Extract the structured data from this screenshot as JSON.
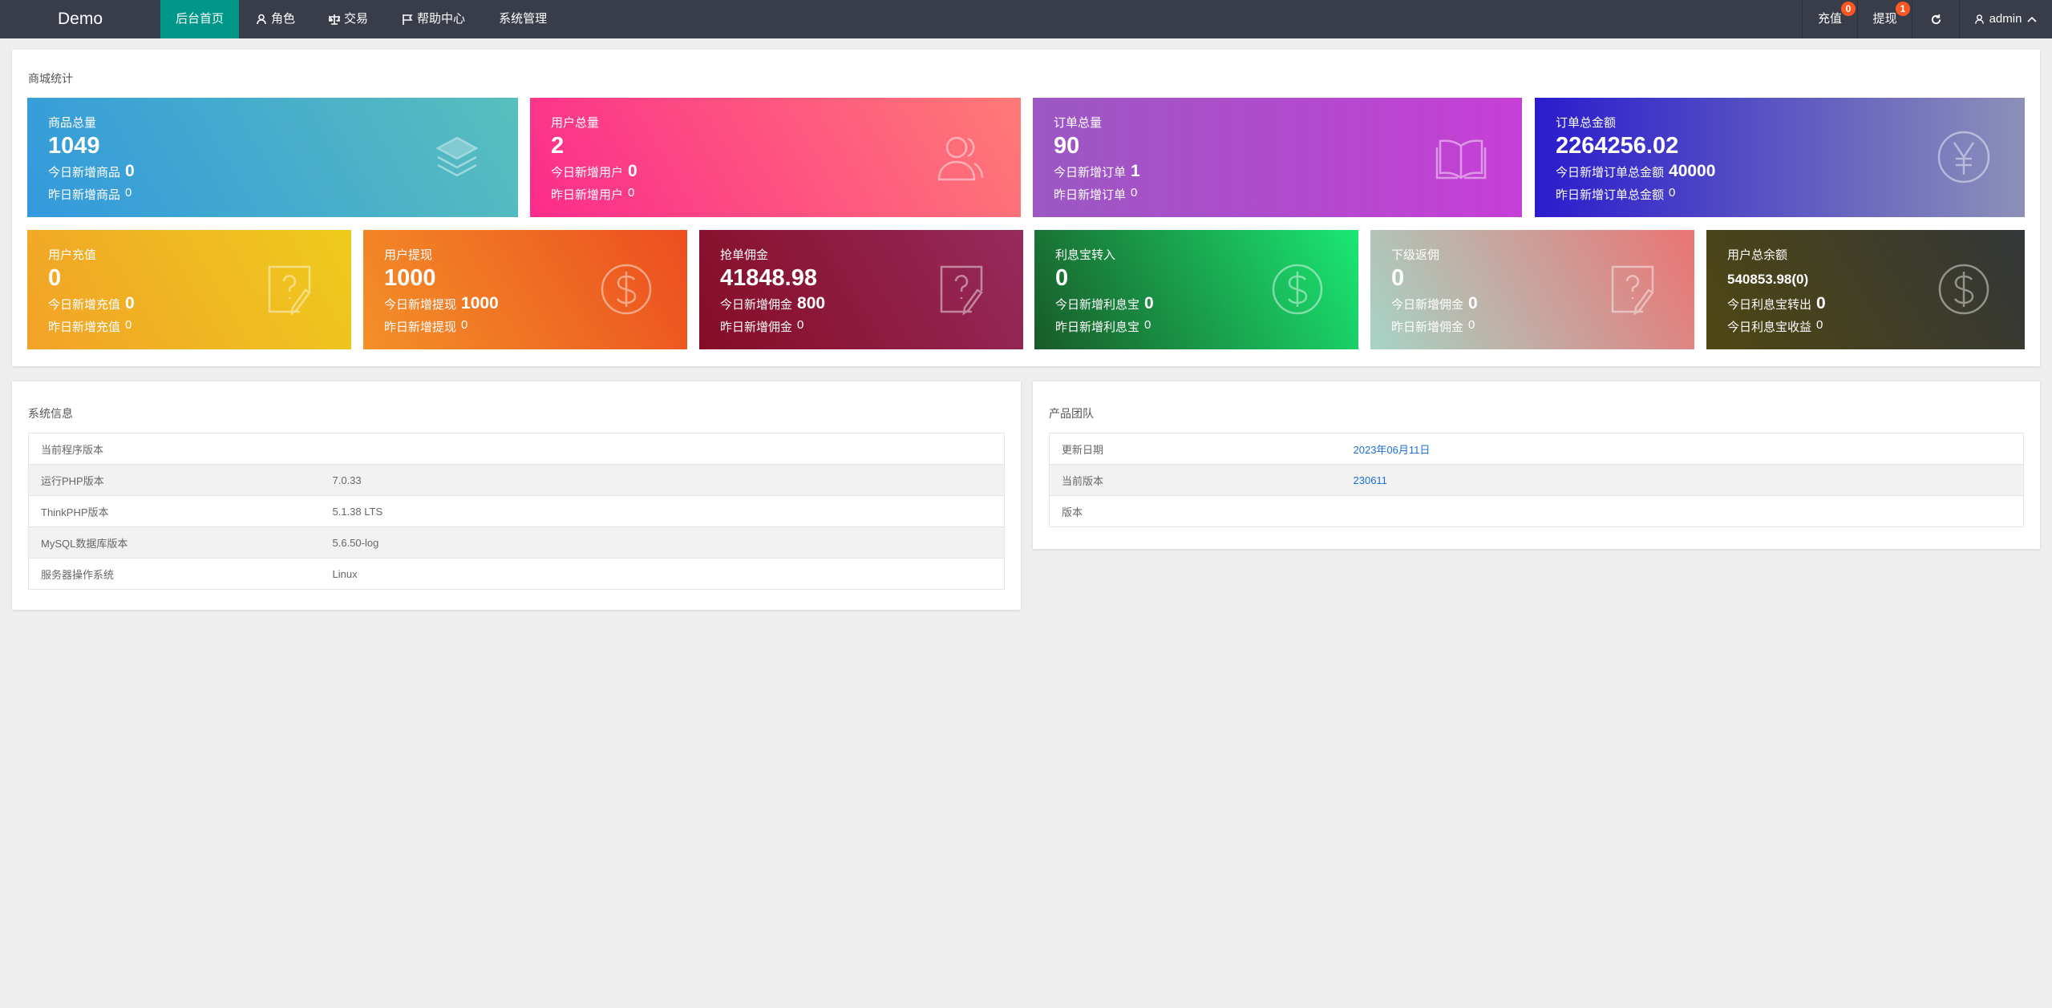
{
  "nav": {
    "logo": "Demo",
    "menu": [
      {
        "label": "后台首页",
        "icon": "home",
        "active": true
      },
      {
        "label": "角色",
        "icon": "user-icon"
      },
      {
        "label": "交易",
        "icon": "scale-icon"
      },
      {
        "label": "帮助中心",
        "icon": "flag-icon"
      },
      {
        "label": "系统管理",
        "icon": ""
      }
    ],
    "right": {
      "recharge": "充值",
      "recharge_badge": "0",
      "withdraw": "提现",
      "withdraw_badge": "1",
      "refresh_icon": "refresh-icon",
      "user": "admin"
    }
  },
  "stats": {
    "title": "商城统计",
    "cards": [
      {
        "title": "商品总量",
        "value": "1049",
        "today_label": "今日新增商品",
        "today": "0",
        "yest_label": "昨日新增商品",
        "yest": "0",
        "icon": "layers",
        "colors": [
          "#3399dd",
          "#58bfbd"
        ]
      },
      {
        "title": "用户总量",
        "value": "2",
        "today_label": "今日新增用户",
        "today": "0",
        "yest_label": "昨日新增用户",
        "yest": "0",
        "icon": "user",
        "colors": [
          "#fc2c8c",
          "#ff7a76"
        ]
      },
      {
        "title": "订单总量",
        "value": "90",
        "today_label": "今日新增订单",
        "today": "1",
        "yest_label": "昨日新增订单",
        "yest": "0",
        "icon": "book",
        "colors": [
          "#9b58c3",
          "#c63fd6"
        ]
      },
      {
        "title": "订单总金额",
        "value": "2264256.02",
        "today_label": "今日新增订单总金额",
        "today": "40000",
        "yest_label": "昨日新增订单总金额",
        "yest": "0",
        "icon": "yen",
        "colors": [
          "#2a1ccd",
          "#8c90b8"
        ]
      },
      {
        "title": "用户充值",
        "value": "0",
        "today_label": "今日新增充值",
        "today": "0",
        "yest_label": "昨日新增充值",
        "yest": "0",
        "icon": "note",
        "colors": [
          "#f2a228",
          "#eecb1c"
        ]
      },
      {
        "title": "用户提现",
        "value": "1000",
        "today_label": "今日新增提现",
        "today": "1000",
        "yest_label": "昨日新增提现",
        "yest": "0",
        "icon": "dollar",
        "colors": [
          "#f39028",
          "#ec4e1f"
        ]
      },
      {
        "title": "抢单佣金",
        "value": "41848.98",
        "today_label": "今日新增佣金",
        "today": "800",
        "yest_label": "昨日新增佣金",
        "yest": "0",
        "icon": "note",
        "colors": [
          "#860c26",
          "#962b5c"
        ]
      },
      {
        "title": "利息宝转入",
        "value": "0",
        "today_label": "今日新增利息宝",
        "today": "0",
        "yest_label": "昨日新增利息宝",
        "yest": "0",
        "icon": "dollar",
        "colors": [
          "#195a28",
          "#1ae873"
        ]
      },
      {
        "title": "下级返佣",
        "value": "0",
        "today_label": "今日新增佣金",
        "today": "0",
        "yest_label": "昨日新增佣金",
        "yest": "0",
        "icon": "note",
        "colors": [
          "#a6d4c6",
          "#ea7474"
        ]
      },
      {
        "title": "用户总余额",
        "value": "540853.98(0)",
        "today_label": "今日利息宝转出",
        "today": "0",
        "yest_label": "今日利息宝收益",
        "yest": "0",
        "icon": "dollar",
        "colors": [
          "#4f4713",
          "#333638"
        ]
      }
    ]
  },
  "sysinfo": {
    "title": "系统信息",
    "rows": [
      [
        "当前程序版本",
        ""
      ],
      [
        "运行PHP版本",
        "7.0.33"
      ],
      [
        "ThinkPHP版本",
        "5.1.38 LTS"
      ],
      [
        "MySQL数据库版本",
        "5.6.50-log"
      ],
      [
        "服务器操作系统",
        "Linux"
      ]
    ]
  },
  "team": {
    "title": "产品团队",
    "rows": [
      [
        "更新日期",
        "2023年06月11日"
      ],
      [
        "当前版本",
        "230611"
      ],
      [
        "版本",
        ""
      ]
    ]
  }
}
